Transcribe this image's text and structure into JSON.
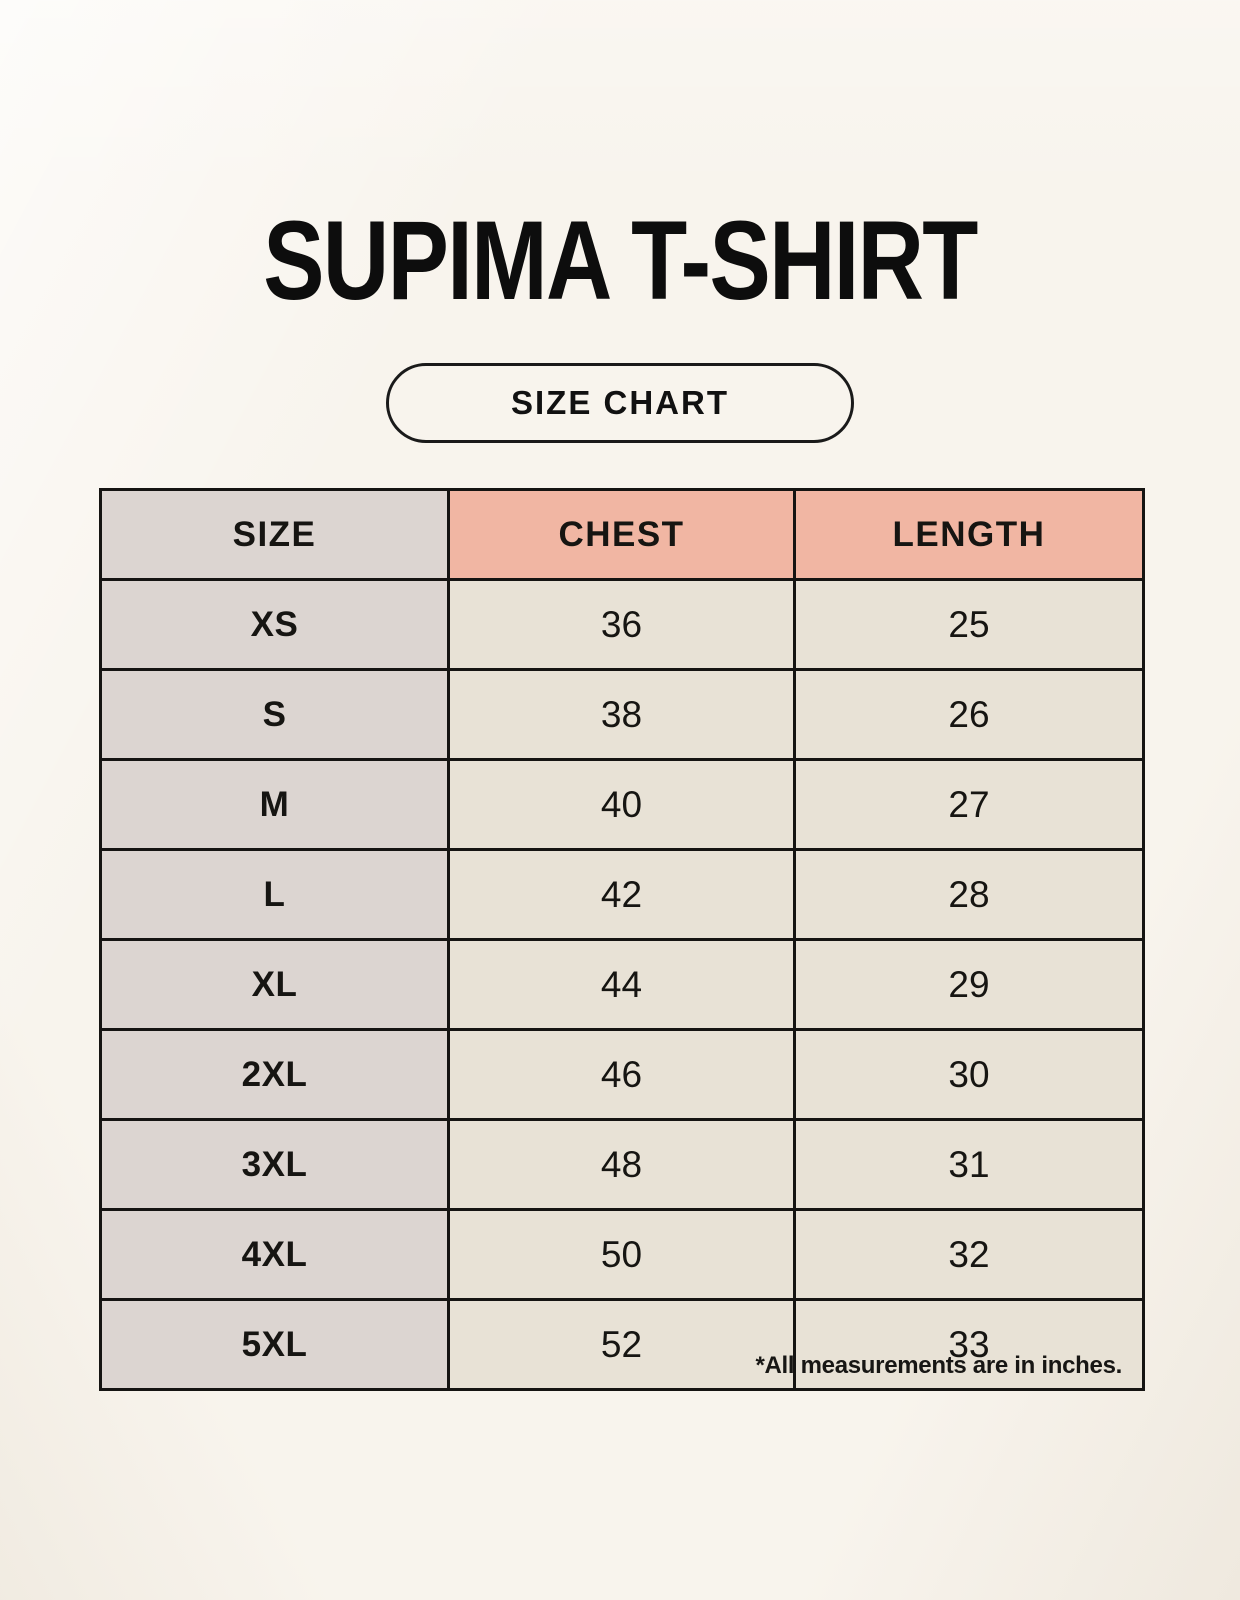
{
  "page": {
    "title": "SUPIMA T-SHIRT",
    "badge_label": "SIZE CHART",
    "footnote": "*All measurements are in inches."
  },
  "colors": {
    "background": "#f8f4ed",
    "header_pink": "#f1b6a3",
    "size_column": "#dcd5d1",
    "value_cell": "#e8e2d6",
    "border": "#151412",
    "text": "#111111"
  },
  "chart_data": {
    "type": "table",
    "title": "SUPIMA T-SHIRT size chart",
    "columns": [
      "SIZE",
      "CHEST",
      "LENGTH"
    ],
    "units": "inches",
    "rows": [
      [
        "XS",
        "36",
        "25"
      ],
      [
        "S",
        "38",
        "26"
      ],
      [
        "M",
        "40",
        "27"
      ],
      [
        "L",
        "42",
        "28"
      ],
      [
        "XL",
        "44",
        "29"
      ],
      [
        "2XL",
        "46",
        "30"
      ],
      [
        "3XL",
        "48",
        "31"
      ],
      [
        "4XL",
        "50",
        "32"
      ],
      [
        "5XL",
        "52",
        "33"
      ]
    ]
  }
}
